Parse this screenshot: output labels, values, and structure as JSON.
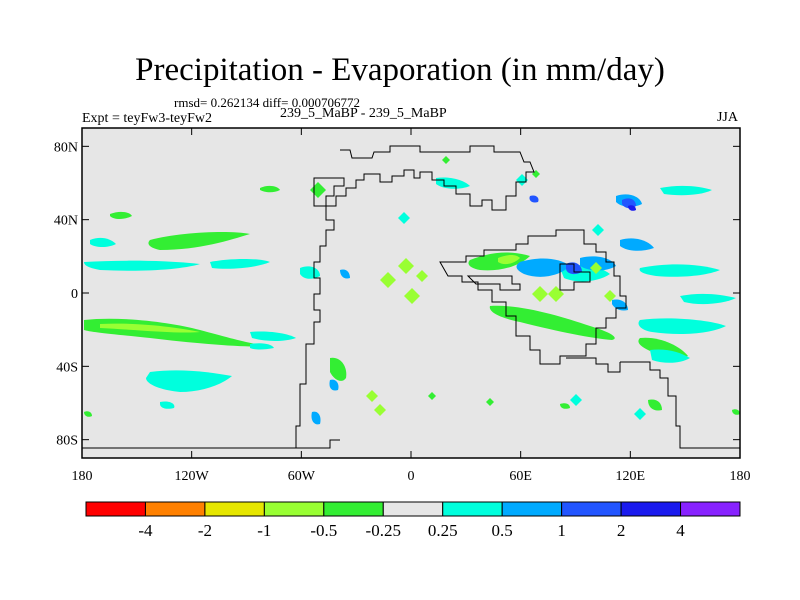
{
  "header": {
    "title": "Precipitation - Evaporation (in mm/day)",
    "stats": "rmsd= 0.262134 diff= 0.000706772",
    "expt": "Expt = teyFw3-teyFw2",
    "case": "239_5_MaBP - 239_5_MaBP",
    "season": "JJA"
  },
  "axes": {
    "lat_labels": [
      "80N",
      "40N",
      "0",
      "40S",
      "80S"
    ],
    "lat_values": [
      80,
      40,
      0,
      -40,
      -80
    ],
    "lon_labels": [
      "180",
      "120W",
      "60W",
      "0",
      "60E",
      "120E",
      "180"
    ],
    "lon_values": [
      -180,
      -120,
      -60,
      0,
      60,
      120,
      180
    ],
    "lat_range": [
      -90,
      90
    ],
    "lon_range": [
      -180,
      180
    ]
  },
  "colorbar": {
    "colors": [
      "#ff0000",
      "#ff8000",
      "#e6e600",
      "#99ff33",
      "#33ee33",
      "#e6e6e6",
      "#00ffdd",
      "#00aaff",
      "#2255ff",
      "#1a1aee",
      "#8822ff"
    ],
    "labels": [
      "-4",
      "-2",
      "-1",
      "-0.5",
      "-0.25",
      "0.25",
      "0.5",
      "1",
      "2",
      "4"
    ]
  },
  "colors": {
    "land_background": "#e6e6e6",
    "frame": "#000000"
  }
}
